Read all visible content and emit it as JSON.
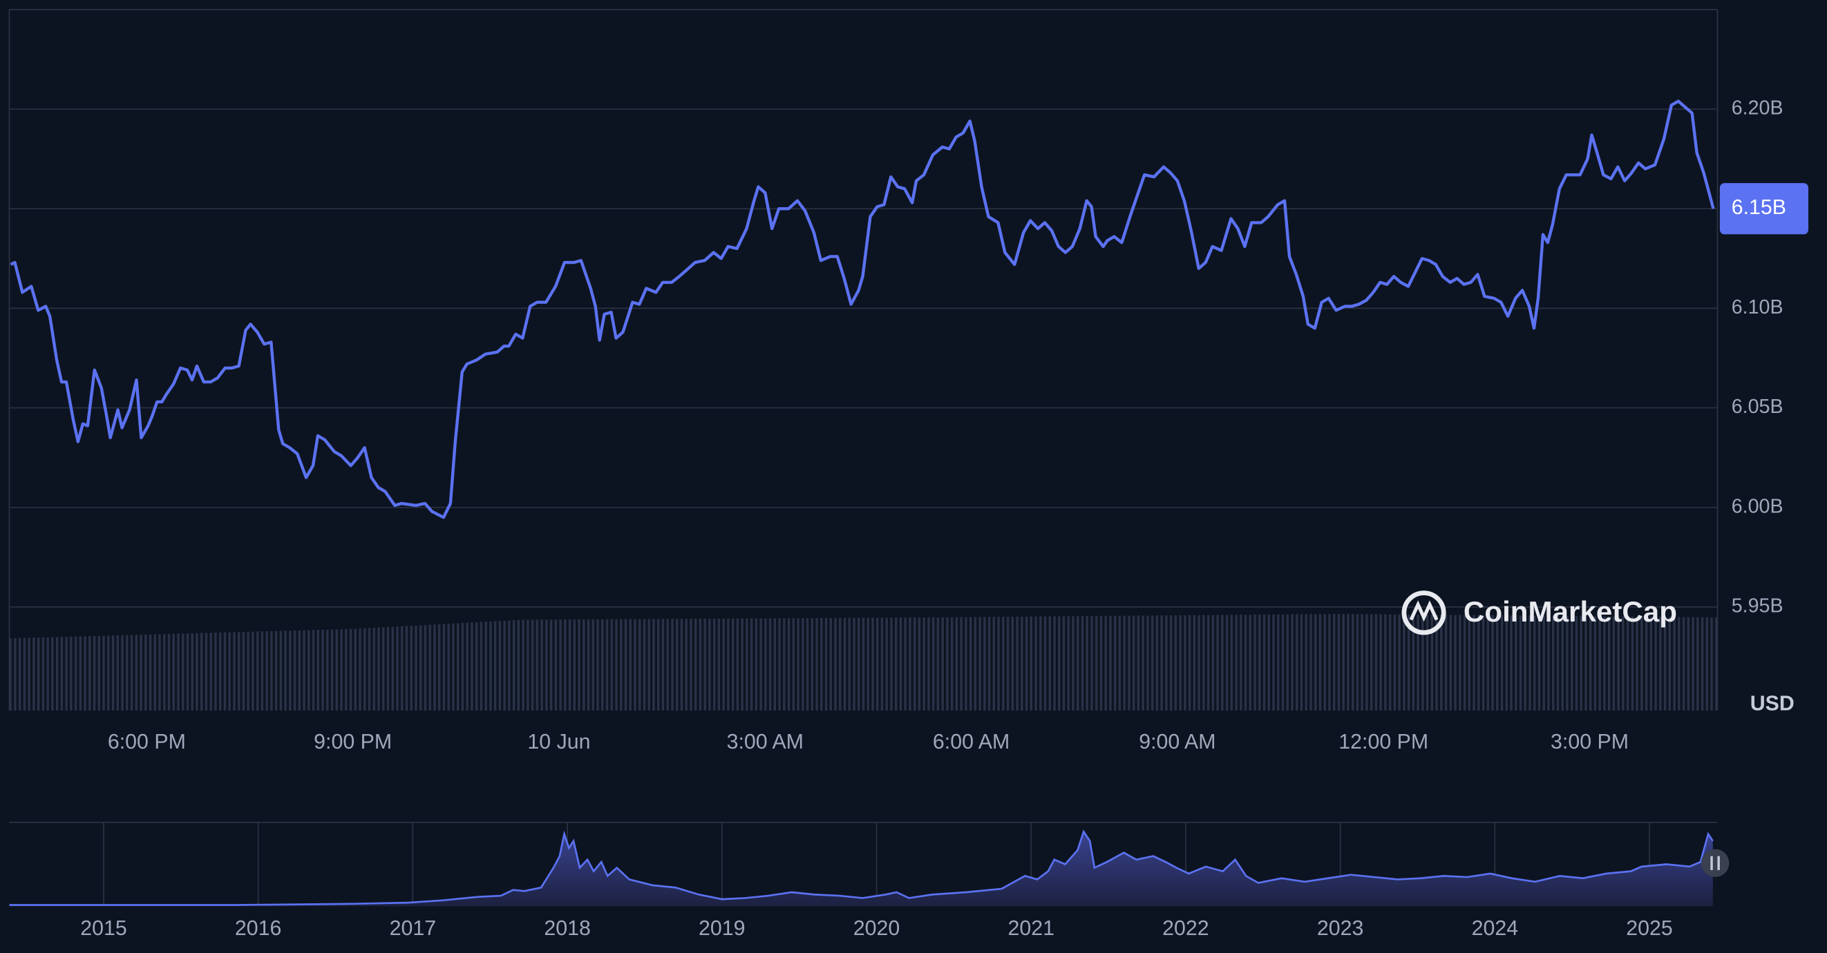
{
  "chart_data": [
    {
      "type": "line",
      "color": "#5b72f2",
      "grid": true,
      "ylabel": "USD",
      "watermark": "CoinMarketCap",
      "current": {
        "value": 6.15,
        "label": "6.15B"
      },
      "xlim": [
        16.0,
        40.86
      ],
      "xticks": [
        {
          "value": 18,
          "label": "6:00 PM"
        },
        {
          "value": 21,
          "label": "9:00 PM"
        },
        {
          "value": 24,
          "label": "10 Jun"
        },
        {
          "value": 27,
          "label": "3:00 AM"
        },
        {
          "value": 30,
          "label": "6:00 AM"
        },
        {
          "value": 33,
          "label": "9:00 AM"
        },
        {
          "value": 36,
          "label": "12:00 PM"
        },
        {
          "value": 39,
          "label": "3:00 PM"
        }
      ],
      "ylim": [
        5.898,
        6.25
      ],
      "yticks": [
        {
          "value": 5.95,
          "label": "5.95B"
        },
        {
          "value": 6.0,
          "label": "6.00B"
        },
        {
          "value": 6.05,
          "label": "6.05B"
        },
        {
          "value": 6.1,
          "label": "6.10B"
        },
        {
          "value": 6.15,
          "label": "6.15B"
        },
        {
          "value": 6.2,
          "label": "6.20B"
        }
      ],
      "x": [
        16.02,
        16.08,
        16.19,
        16.32,
        16.42,
        16.53,
        16.59,
        16.69,
        16.76,
        16.83,
        16.93,
        17.0,
        17.07,
        17.14,
        17.24,
        17.34,
        17.41,
        17.47,
        17.58,
        17.64,
        17.75,
        17.85,
        17.92,
        18.02,
        18.08,
        18.15,
        18.22,
        18.29,
        18.39,
        18.49,
        18.59,
        18.66,
        18.73,
        18.83,
        18.93,
        19.03,
        19.14,
        19.24,
        19.34,
        19.44,
        19.51,
        19.61,
        19.71,
        19.81,
        19.92,
        19.98,
        20.08,
        20.19,
        20.32,
        20.42,
        20.49,
        20.59,
        20.73,
        20.83,
        20.97,
        21.07,
        21.17,
        21.27,
        21.37,
        21.47,
        21.61,
        21.71,
        21.92,
        22.05,
        22.15,
        22.32,
        22.42,
        22.49,
        22.59,
        22.66,
        22.8,
        22.93,
        23.1,
        23.2,
        23.27,
        23.37,
        23.47,
        23.58,
        23.68,
        23.81,
        23.95,
        24.08,
        24.22,
        24.32,
        24.46,
        24.53,
        24.59,
        24.66,
        24.76,
        24.83,
        24.93,
        25.07,
        25.17,
        25.27,
        25.41,
        25.51,
        25.64,
        25.75,
        25.85,
        25.98,
        26.12,
        26.25,
        26.36,
        26.46,
        26.59,
        26.73,
        26.83,
        26.9,
        27.0,
        27.1,
        27.2,
        27.34,
        27.47,
        27.58,
        27.71,
        27.81,
        27.95,
        28.05,
        28.15,
        28.25,
        28.36,
        28.42,
        28.53,
        28.63,
        28.73,
        28.83,
        28.93,
        29.03,
        29.14,
        29.2,
        29.31,
        29.44,
        29.58,
        29.68,
        29.78,
        29.88,
        29.98,
        30.05,
        30.15,
        30.25,
        30.39,
        30.49,
        30.63,
        30.76,
        30.86,
        30.97,
        31.07,
        31.17,
        31.27,
        31.37,
        31.47,
        31.58,
        31.68,
        31.75,
        31.81,
        31.92,
        31.98,
        32.08,
        32.19,
        32.32,
        32.42,
        32.52,
        32.66,
        32.8,
        32.9,
        33.0,
        33.1,
        33.2,
        33.31,
        33.41,
        33.51,
        33.64,
        33.78,
        33.88,
        33.98,
        34.08,
        34.22,
        34.32,
        34.46,
        34.56,
        34.63,
        34.73,
        34.83,
        34.9,
        35.0,
        35.1,
        35.2,
        35.31,
        35.44,
        35.54,
        35.64,
        35.75,
        35.85,
        35.95,
        36.05,
        36.15,
        36.25,
        36.36,
        36.46,
        36.56,
        36.66,
        36.76,
        36.86,
        36.97,
        37.07,
        37.17,
        37.27,
        37.37,
        37.47,
        37.61,
        37.71,
        37.81,
        37.92,
        38.02,
        38.12,
        38.19,
        38.25,
        38.32,
        38.39,
        38.46,
        38.56,
        38.66,
        38.76,
        38.86,
        38.97,
        39.03,
        39.1,
        39.2,
        39.31,
        39.41,
        39.51,
        39.61,
        39.71,
        39.81,
        39.95,
        40.08,
        40.19,
        40.29,
        40.39,
        40.49,
        40.56,
        40.66,
        40.8
      ],
      "values": [
        6.122,
        6.123,
        6.108,
        6.111,
        6.099,
        6.101,
        6.096,
        6.074,
        6.063,
        6.063,
        6.044,
        6.033,
        6.042,
        6.041,
        6.069,
        6.06,
        6.047,
        6.035,
        6.049,
        6.04,
        6.049,
        6.064,
        6.035,
        6.041,
        6.046,
        6.053,
        6.053,
        6.057,
        6.062,
        6.07,
        6.069,
        6.064,
        6.071,
        6.063,
        6.063,
        6.065,
        6.07,
        6.07,
        6.071,
        6.089,
        6.092,
        6.088,
        6.082,
        6.083,
        6.039,
        6.032,
        6.03,
        6.027,
        6.015,
        6.021,
        6.036,
        6.034,
        6.028,
        6.026,
        6.021,
        6.025,
        6.03,
        6.015,
        6.01,
        6.008,
        6.001,
        6.002,
        6.001,
        6.002,
        5.998,
        5.995,
        6.002,
        6.033,
        6.068,
        6.072,
        6.074,
        6.077,
        6.078,
        6.081,
        6.081,
        6.087,
        6.085,
        6.101,
        6.103,
        6.103,
        6.111,
        6.123,
        6.123,
        6.124,
        6.11,
        6.101,
        6.084,
        6.097,
        6.098,
        6.085,
        6.088,
        6.103,
        6.102,
        6.11,
        6.108,
        6.113,
        6.113,
        6.116,
        6.119,
        6.123,
        6.124,
        6.128,
        6.125,
        6.131,
        6.13,
        6.14,
        6.153,
        6.161,
        6.158,
        6.14,
        6.15,
        6.15,
        6.154,
        6.149,
        6.138,
        6.124,
        6.126,
        6.126,
        6.115,
        6.102,
        6.109,
        6.116,
        6.146,
        6.151,
        6.152,
        6.166,
        6.161,
        6.16,
        6.153,
        6.164,
        6.167,
        6.177,
        6.181,
        6.18,
        6.186,
        6.188,
        6.194,
        6.184,
        6.161,
        6.146,
        6.143,
        6.128,
        6.122,
        6.138,
        6.144,
        6.14,
        6.143,
        6.139,
        6.131,
        6.128,
        6.131,
        6.14,
        6.154,
        6.151,
        6.136,
        6.131,
        6.134,
        6.136,
        6.133,
        6.147,
        6.157,
        6.167,
        6.166,
        6.171,
        6.168,
        6.164,
        6.154,
        6.139,
        6.12,
        6.123,
        6.131,
        6.129,
        6.145,
        6.14,
        6.131,
        6.143,
        6.143,
        6.146,
        6.152,
        6.154,
        6.126,
        6.117,
        6.106,
        6.092,
        6.09,
        6.103,
        6.105,
        6.099,
        6.101,
        6.101,
        6.102,
        6.104,
        6.108,
        6.113,
        6.112,
        6.116,
        6.113,
        6.111,
        6.118,
        6.125,
        6.124,
        6.122,
        6.116,
        6.113,
        6.115,
        6.112,
        6.113,
        6.117,
        6.106,
        6.105,
        6.103,
        6.096,
        6.105,
        6.109,
        6.101,
        6.09,
        6.105,
        6.137,
        6.133,
        6.142,
        6.16,
        6.167,
        6.167,
        6.167,
        6.175,
        6.187,
        6.179,
        6.167,
        6.165,
        6.171,
        6.164,
        6.168,
        6.173,
        6.17,
        6.172,
        6.185,
        6.202,
        6.204,
        6.201,
        6.198,
        6.178,
        6.168,
        6.15
      ]
    },
    {
      "type": "area",
      "color": "#5b72f2",
      "xlim": [
        2014.39,
        2025.44
      ],
      "ylim": [
        0,
        7.2
      ],
      "xticks": [
        2015,
        2016,
        2017,
        2018,
        2019,
        2020,
        2021,
        2022,
        2023,
        2024,
        2025
      ],
      "x": [
        2014.39,
        2015.08,
        2015.84,
        2016.59,
        2016.97,
        2017.19,
        2017.42,
        2017.57,
        2017.65,
        2017.72,
        2017.83,
        2017.91,
        2017.95,
        2017.98,
        2018.01,
        2018.04,
        2018.08,
        2018.13,
        2018.17,
        2018.22,
        2018.26,
        2018.32,
        2018.4,
        2018.55,
        2018.7,
        2018.85,
        2019.0,
        2019.15,
        2019.3,
        2019.45,
        2019.6,
        2019.76,
        2019.91,
        2020.06,
        2020.13,
        2020.21,
        2020.36,
        2020.58,
        2020.81,
        2020.96,
        2021.04,
        2021.11,
        2021.15,
        2021.22,
        2021.3,
        2021.34,
        2021.38,
        2021.41,
        2021.49,
        2021.6,
        2021.68,
        2021.79,
        2021.87,
        2021.94,
        2022.02,
        2022.13,
        2022.24,
        2022.32,
        2022.39,
        2022.47,
        2022.62,
        2022.77,
        2022.92,
        2023.07,
        2023.22,
        2023.37,
        2023.52,
        2023.67,
        2023.82,
        2023.97,
        2024.11,
        2024.26,
        2024.42,
        2024.57,
        2024.72,
        2024.88,
        2024.95,
        2025.11,
        2025.26,
        2025.33,
        2025.38,
        2025.41
      ],
      "values": [
        0.1,
        0.1,
        0.1,
        0.2,
        0.3,
        0.5,
        0.8,
        0.9,
        1.4,
        1.3,
        1.6,
        3.3,
        4.3,
        6.2,
        5.0,
        5.6,
        3.3,
        4.0,
        3.0,
        3.8,
        2.6,
        3.3,
        2.3,
        1.8,
        1.6,
        1.0,
        0.6,
        0.7,
        0.9,
        1.2,
        1.0,
        0.9,
        0.7,
        1.0,
        1.2,
        0.7,
        1.0,
        1.2,
        1.5,
        2.6,
        2.3,
        3.0,
        4.0,
        3.6,
        4.8,
        6.4,
        5.6,
        3.3,
        3.8,
        4.6,
        4.0,
        4.3,
        3.8,
        3.3,
        2.8,
        3.4,
        3.0,
        4.0,
        2.6,
        2.0,
        2.4,
        2.1,
        2.4,
        2.7,
        2.5,
        2.3,
        2.4,
        2.6,
        2.5,
        2.8,
        2.4,
        2.1,
        2.6,
        2.4,
        2.8,
        3.0,
        3.4,
        3.6,
        3.4,
        3.8,
        6.2,
        5.6
      ]
    }
  ]
}
